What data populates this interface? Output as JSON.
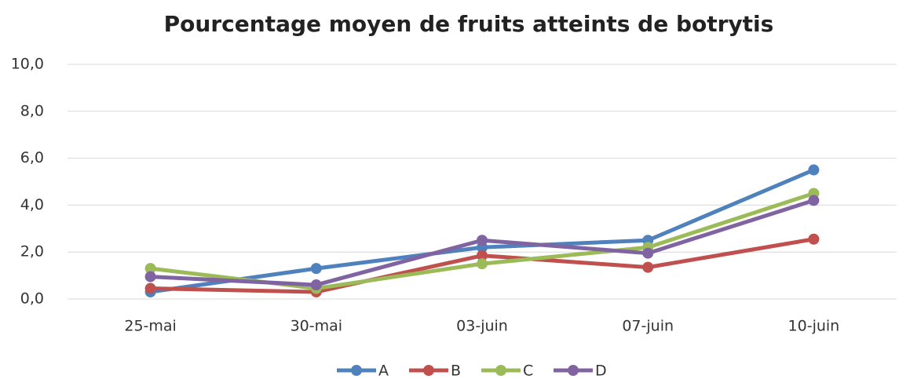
{
  "chart_data": {
    "type": "line",
    "title": "Pourcentage moyen de fruits atteints de botrytis",
    "categories": [
      "25-mai",
      "30-mai",
      "03-juin",
      "07-juin",
      "10-juin"
    ],
    "series": [
      {
        "name": "A",
        "color": "#4f81bd",
        "values": [
          0.3,
          1.3,
          2.2,
          2.5,
          5.5
        ]
      },
      {
        "name": "B",
        "color": "#c0504d",
        "values": [
          0.45,
          0.3,
          1.85,
          1.35,
          2.55
        ]
      },
      {
        "name": "C",
        "color": "#9bbb59",
        "values": [
          1.3,
          0.45,
          1.5,
          2.2,
          4.5
        ]
      },
      {
        "name": "D",
        "color": "#8064a2",
        "values": [
          0.95,
          0.6,
          2.5,
          1.95,
          4.2
        ]
      }
    ],
    "ylim": [
      0,
      10
    ],
    "yticks": [
      {
        "value": 0,
        "label": "0,0"
      },
      {
        "value": 2,
        "label": "2,0"
      },
      {
        "value": 4,
        "label": "4,0"
      },
      {
        "value": 6,
        "label": "6,0"
      },
      {
        "value": 8,
        "label": "8,0"
      },
      {
        "value": 10,
        "label": "10,0"
      }
    ],
    "grid": true,
    "legend": "bottom"
  }
}
